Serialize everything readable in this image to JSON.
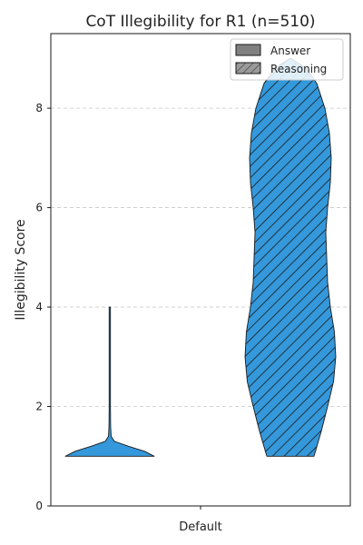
{
  "chart_data": {
    "type": "violin",
    "title": "CoT Illegibility for R1 (n=510)",
    "xlabel": "",
    "ylabel": "Illegibility Score",
    "categories": [
      "Default"
    ],
    "ylim": [
      0,
      9.5
    ],
    "yticks": [
      0,
      2,
      4,
      6,
      8
    ],
    "grid": true,
    "legend_position": "top-right",
    "colors": {
      "fill": "#3498db",
      "edge": "#1a1a1a",
      "legend_fill": "#808080"
    },
    "series": [
      {
        "name": "Answer",
        "hatch": "none",
        "min": 1,
        "max": 4,
        "density_profile": [
          [
            1.0,
            1.0
          ],
          [
            1.1,
            0.78
          ],
          [
            1.2,
            0.42
          ],
          [
            1.3,
            0.1
          ],
          [
            1.4,
            0.03
          ],
          [
            1.6,
            0.018
          ],
          [
            2.0,
            0.012
          ],
          [
            3.0,
            0.006
          ],
          [
            4.0,
            0.0
          ]
        ]
      },
      {
        "name": "Reasoning",
        "hatch": "diagonal",
        "min": 1,
        "max": 9,
        "density_profile": [
          [
            1.0,
            0.52
          ],
          [
            1.5,
            0.68
          ],
          [
            2.0,
            0.82
          ],
          [
            2.5,
            0.95
          ],
          [
            3.0,
            1.0
          ],
          [
            3.5,
            0.97
          ],
          [
            4.0,
            0.88
          ],
          [
            4.5,
            0.82
          ],
          [
            5.0,
            0.8
          ],
          [
            5.5,
            0.78
          ],
          [
            6.0,
            0.82
          ],
          [
            6.5,
            0.88
          ],
          [
            7.0,
            0.9
          ],
          [
            7.5,
            0.86
          ],
          [
            8.0,
            0.76
          ],
          [
            8.5,
            0.58
          ],
          [
            8.8,
            0.35
          ],
          [
            9.0,
            0.0
          ]
        ]
      }
    ]
  }
}
